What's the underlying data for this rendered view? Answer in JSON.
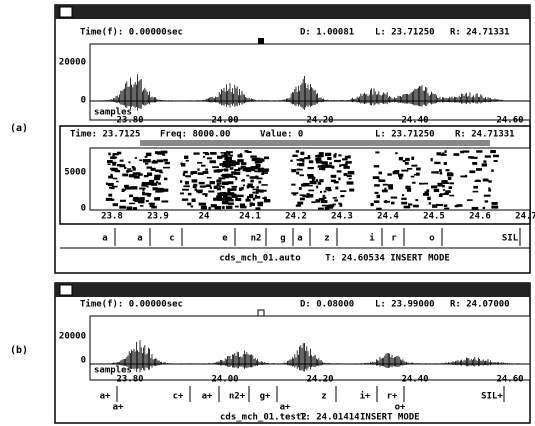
{
  "figure_a": {
    "label": "(a)",
    "waveform": {
      "header": [
        "Time(f):  0.00000sec",
        "D: 1.00081",
        "L: 23.71250",
        "R: 24.71331"
      ],
      "y_labels": [
        "20000",
        "0"
      ],
      "axis_label": "samples",
      "x_labels": [
        "23.80",
        "24.00",
        "24.20",
        "24.40",
        "24.60"
      ]
    },
    "spectrogram": {
      "header": [
        "Time:  23.7125",
        "Freq:  8000.00",
        "Value:   0",
        "L: 23.71250",
        "R: 24.71331"
      ],
      "y_labels": [
        "5000",
        "0"
      ],
      "x_labels": [
        "23.8",
        "23.9",
        "24",
        "24.1",
        "24.2",
        "24.3",
        "24.4",
        "24.5",
        "24.6",
        "24.7"
      ]
    },
    "segments": [
      "a",
      "a",
      "c",
      "e",
      "n2",
      "g",
      "a",
      "z",
      "i",
      "r",
      "o",
      "SIL"
    ],
    "status": [
      "cds_mch_01.auto",
      "T: 24.60534",
      "INSERT MODE"
    ]
  },
  "figure_b": {
    "label": "(b)",
    "waveform": {
      "header": [
        "Time(f):  0.00000sec",
        "D: 0.08000",
        "L: 23.99000",
        "R: 24.07000"
      ],
      "y_labels": [
        "20000",
        "0"
      ],
      "axis_label": "samples",
      "x_labels": [
        "23.80",
        "24.00",
        "24.20",
        "24.40",
        "24.60"
      ]
    },
    "segments_upper": [
      "a+",
      "c+",
      "a+",
      "n2+",
      "g+",
      "z",
      "i+",
      "r+",
      "SIL+"
    ],
    "segments_lower": [
      "a+",
      "a+",
      "o+"
    ],
    "status": [
      "cds_mch_01.test2",
      "T: 24.01414",
      "INSERT MODE"
    ]
  }
}
